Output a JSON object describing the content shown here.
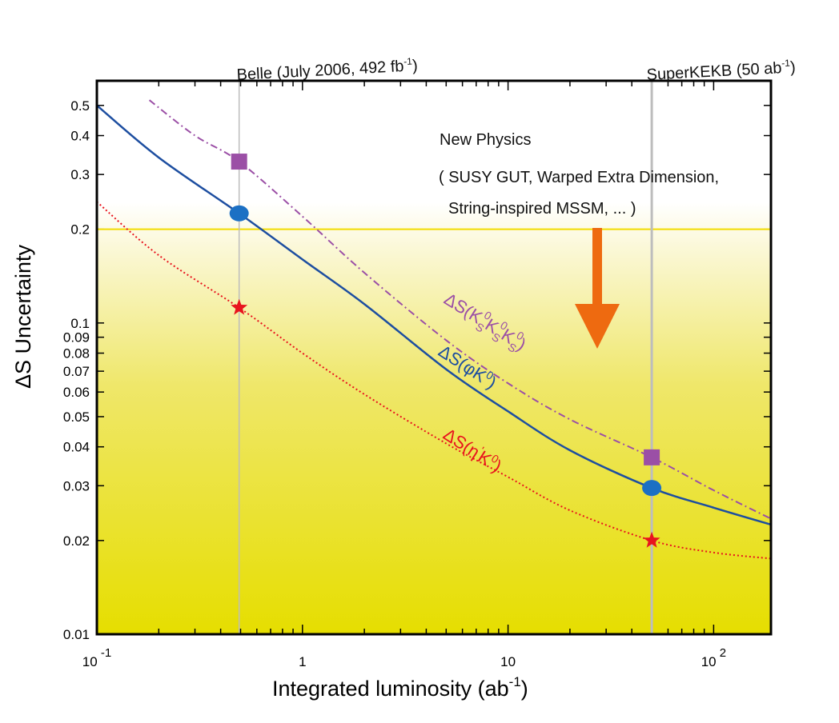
{
  "chart_data": {
    "type": "line",
    "x_scale": "log",
    "y_scale": "log",
    "xlim": [
      0.1,
      190
    ],
    "ylim": [
      0.01,
      0.6
    ],
    "xlabel": "Integrated luminosity (ab",
    "xlabel_sup": "-1",
    "xlabel_close": ")",
    "ylabel": "ΔS Uncertainty",
    "x_ticks": [
      {
        "value": 0.1,
        "base": "10",
        "sup": " -1"
      },
      {
        "value": 1,
        "base": "1",
        "sup": ""
      },
      {
        "value": 10,
        "base": "10",
        "sup": ""
      },
      {
        "value": 100,
        "base": "10",
        "sup": " 2"
      }
    ],
    "y_ticks": [
      {
        "value": 0.5,
        "label": "0.5"
      },
      {
        "value": 0.4,
        "label": "0.4"
      },
      {
        "value": 0.3,
        "label": "0.3"
      },
      {
        "value": 0.2,
        "label": "0.2"
      },
      {
        "value": 0.1,
        "label": "0.1"
      },
      {
        "value": 0.09,
        "label": "0.09"
      },
      {
        "value": 0.08,
        "label": "0.08"
      },
      {
        "value": 0.07,
        "label": "0.07"
      },
      {
        "value": 0.06,
        "label": "0.06"
      },
      {
        "value": 0.05,
        "label": "0.05"
      },
      {
        "value": 0.04,
        "label": "0.04"
      },
      {
        "value": 0.03,
        "label": "0.03"
      },
      {
        "value": 0.02,
        "label": "0.02"
      },
      {
        "value": 0.01,
        "label": "0.01"
      }
    ],
    "threshold": {
      "value": 0.2,
      "color": "#f2dc00"
    },
    "vertical_markers": [
      {
        "x": 0.492,
        "label": "Belle (July 2006, 492 fb",
        "sup": "-1",
        "close": ")"
      },
      {
        "x": 50,
        "label": "SuperKEKB (50 ab",
        "sup": "-1",
        "close": ")"
      }
    ],
    "annotations": {
      "region_title": "New Physics",
      "region_line1": "( SUSY GUT,  Warped Extra Dimension,",
      "region_line2": "String-inspired MSSM,  ... )"
    },
    "series": [
      {
        "id": "ks",
        "label": "ΔS(KSKSKS)",
        "color": "#9b4fa6",
        "style": "dash-dot",
        "marker": "square",
        "x": [
          0.18,
          0.3,
          0.492,
          1,
          2,
          5,
          10,
          20,
          50,
          100,
          190
        ],
        "y": [
          0.52,
          0.4,
          0.33,
          0.22,
          0.145,
          0.088,
          0.064,
          0.049,
          0.037,
          0.029,
          0.0235
        ],
        "points": [
          {
            "x": 0.492,
            "y": 0.33
          },
          {
            "x": 50,
            "y": 0.037
          }
        ]
      },
      {
        "id": "phi",
        "label": "ΔS(φK0)",
        "color": "#1d4ea0",
        "style": "solid",
        "marker": "circle",
        "x": [
          0.1,
          0.2,
          0.492,
          1,
          2,
          5,
          10,
          20,
          50,
          100,
          190
        ],
        "y": [
          0.5,
          0.34,
          0.225,
          0.16,
          0.115,
          0.071,
          0.052,
          0.039,
          0.0295,
          0.0255,
          0.0225
        ],
        "points": [
          {
            "x": 0.492,
            "y": 0.225
          },
          {
            "x": 50,
            "y": 0.0295
          }
        ]
      },
      {
        "id": "eta",
        "label": "ΔS(η'K0)",
        "color": "#e8141e",
        "style": "dotted",
        "marker": "star",
        "x": [
          0.1,
          0.2,
          0.492,
          1,
          2,
          5,
          10,
          20,
          50,
          100,
          190
        ],
        "y": [
          0.245,
          0.165,
          0.112,
          0.08,
          0.059,
          0.041,
          0.032,
          0.025,
          0.02,
          0.0183,
          0.0175
        ],
        "points": [
          {
            "x": 0.492,
            "y": 0.112
          },
          {
            "x": 50,
            "y": 0.02
          }
        ]
      }
    ],
    "colors": {
      "background_top": "#ffffff",
      "background_bottom": "#e6de00",
      "arrow": "#ee6a10",
      "marker_line": "#bdbdbd"
    }
  }
}
